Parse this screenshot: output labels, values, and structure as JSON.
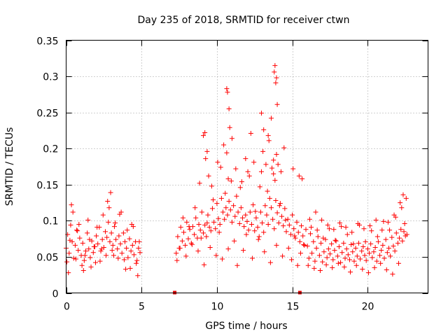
{
  "chart_data": {
    "type": "scatter",
    "title": "Day 235 of 2018, SRMTID for receiver ctwn",
    "xlabel": "GPS time / hours",
    "ylabel": "SRMTID / TECUs",
    "xlim": [
      0,
      24
    ],
    "ylim": [
      0,
      0.35
    ],
    "xticks": [
      0,
      5,
      10,
      15,
      20
    ],
    "xtick_labels": [
      "0",
      "5",
      "10",
      "15",
      "20"
    ],
    "yticks": [
      0,
      0.05,
      0.1,
      0.15,
      0.2,
      0.25,
      0.3,
      0.35
    ],
    "ytick_labels": [
      "0",
      "0.05",
      "0.1",
      "0.15",
      "0.2",
      "0.25",
      "0.3",
      "0.35"
    ],
    "grid": true,
    "marker": "plus",
    "color": "#ff0000",
    "data_gaps_marked_at_zero": [
      7.2,
      15.5
    ],
    "series": [
      {
        "name": "SRMTID",
        "x": [
          0.0,
          0.1,
          0.2,
          0.3,
          0.4,
          0.5,
          0.6,
          0.7,
          0.8,
          0.9,
          1.0,
          1.1,
          1.2,
          1.3,
          1.4,
          1.5,
          1.6,
          1.7,
          1.8,
          1.9,
          2.0,
          2.1,
          2.2,
          2.3,
          2.4,
          2.5,
          2.6,
          2.7,
          2.8,
          2.9,
          3.0,
          3.1,
          3.2,
          3.3,
          3.4,
          3.5,
          3.6,
          3.7,
          3.8,
          3.9,
          4.0,
          4.1,
          4.2,
          4.3,
          4.4,
          4.5,
          4.6,
          4.7,
          4.8,
          4.9,
          0.05,
          0.25,
          0.45,
          0.65,
          0.85,
          1.05,
          1.25,
          1.45,
          1.65,
          1.85,
          2.05,
          2.25,
          2.45,
          2.65,
          2.85,
          3.05,
          3.25,
          3.45,
          3.65,
          3.85,
          4.05,
          4.25,
          4.45,
          4.65,
          4.85,
          0.15,
          0.35,
          0.75,
          1.15,
          1.55,
          1.95,
          2.35,
          2.75,
          2.95,
          3.15,
          3.55,
          3.95,
          4.35,
          4.75,
          7.3,
          7.4,
          7.5,
          7.6,
          7.7,
          7.8,
          7.9,
          8.0,
          8.1,
          8.2,
          8.3,
          8.4,
          8.5,
          8.6,
          8.7,
          8.8,
          8.9,
          9.0,
          9.1,
          9.2,
          9.3,
          9.4,
          9.5,
          9.6,
          9.7,
          9.8,
          9.9,
          10.0,
          10.1,
          10.2,
          10.3,
          10.4,
          10.5,
          10.6,
          10.7,
          10.8,
          10.9,
          11.0,
          11.1,
          11.2,
          11.3,
          11.4,
          11.5,
          11.6,
          11.7,
          11.8,
          11.9,
          12.0,
          12.1,
          12.2,
          12.3,
          12.4,
          12.5,
          12.6,
          12.7,
          12.8,
          12.9,
          13.0,
          13.1,
          13.2,
          13.3,
          13.4,
          13.5,
          13.6,
          13.7,
          13.8,
          13.9,
          14.0,
          14.1,
          14.2,
          14.3,
          14.4,
          14.5,
          14.6,
          14.7,
          14.8,
          14.9,
          15.0,
          15.1,
          15.2,
          15.3,
          15.4,
          15.5,
          15.6,
          15.7,
          15.8,
          15.9,
          7.35,
          7.55,
          7.75,
          7.95,
          8.15,
          8.35,
          8.55,
          8.75,
          8.95,
          9.15,
          9.35,
          9.55,
          9.75,
          9.95,
          10.15,
          10.35,
          10.55,
          10.75,
          10.95,
          11.15,
          11.35,
          11.55,
          11.75,
          11.95,
          12.15,
          12.35,
          12.55,
          12.75,
          12.95,
          13.15,
          13.35,
          13.55,
          13.75,
          13.95,
          14.15,
          14.35,
          14.55,
          14.75,
          14.95,
          15.15,
          15.35,
          15.55,
          15.75,
          8.85,
          9.25,
          9.45,
          9.65,
          10.05,
          10.25,
          10.45,
          10.65,
          10.75,
          11.25,
          11.65,
          12.05,
          12.45,
          12.85,
          13.05,
          13.25,
          13.45,
          13.65,
          13.75,
          13.85,
          13.95,
          14.05,
          14.25,
          14.45,
          15.05,
          15.45,
          15.65,
          10.65,
          10.7,
          10.8,
          13.8,
          13.85,
          13.9,
          13.95,
          14.0,
          12.95,
          13.1,
          13.4,
          13.6,
          9.1,
          9.2,
          9.35,
          10.85,
          11.0,
          11.9,
          12.25,
          16.0,
          16.1,
          16.2,
          16.3,
          16.4,
          16.5,
          16.6,
          16.7,
          16.8,
          16.9,
          17.0,
          17.1,
          17.2,
          17.3,
          17.4,
          17.5,
          17.6,
          17.7,
          17.8,
          17.9,
          18.0,
          18.1,
          18.2,
          18.3,
          18.4,
          18.5,
          18.6,
          18.7,
          18.8,
          18.9,
          19.0,
          19.1,
          19.2,
          19.3,
          19.4,
          19.5,
          19.6,
          19.7,
          19.8,
          19.9,
          20.0,
          20.1,
          20.2,
          20.3,
          20.4,
          20.5,
          20.6,
          20.7,
          20.8,
          20.9,
          21.0,
          21.1,
          21.2,
          21.3,
          21.4,
          21.5,
          21.6,
          21.7,
          21.8,
          21.9,
          22.0,
          22.1,
          22.2,
          22.3,
          22.4,
          22.5,
          22.6,
          16.05,
          16.25,
          16.45,
          16.65,
          16.85,
          17.05,
          17.25,
          17.45,
          17.65,
          17.85,
          18.05,
          18.25,
          18.45,
          18.65,
          18.85,
          19.05,
          19.25,
          19.45,
          19.65,
          19.85,
          20.05,
          20.25,
          20.45,
          20.65,
          20.85,
          21.05,
          21.25,
          21.45,
          21.65,
          21.85,
          22.05,
          22.25,
          22.45,
          16.15,
          16.55,
          16.95,
          17.35,
          17.75,
          18.15,
          18.55,
          18.95,
          19.35,
          19.75,
          20.15,
          20.55,
          20.95,
          21.35,
          21.75,
          22.15,
          22.35,
          22.55
        ],
        "y": [
          0.062,
          0.081,
          0.055,
          0.094,
          0.071,
          0.048,
          0.066,
          0.087,
          0.059,
          0.076,
          0.052,
          0.069,
          0.045,
          0.058,
          0.083,
          0.061,
          0.049,
          0.072,
          0.056,
          0.064,
          0.079,
          0.068,
          0.091,
          0.058,
          0.074,
          0.063,
          0.085,
          0.077,
          0.098,
          0.071,
          0.083,
          0.066,
          0.092,
          0.074,
          0.061,
          0.079,
          0.068,
          0.055,
          0.083,
          0.071,
          0.062,
          0.049,
          0.075,
          0.058,
          0.066,
          0.053,
          0.071,
          0.045,
          0.062,
          0.056,
          0.043,
          0.073,
          0.112,
          0.047,
          0.095,
          0.038,
          0.052,
          0.101,
          0.036,
          0.064,
          0.091,
          0.044,
          0.108,
          0.052,
          0.118,
          0.059,
          0.097,
          0.048,
          0.112,
          0.046,
          0.087,
          0.034,
          0.092,
          0.041,
          0.071,
          0.028,
          0.122,
          0.086,
          0.031,
          0.074,
          0.042,
          0.061,
          0.127,
          0.139,
          0.052,
          0.109,
          0.033,
          0.095,
          0.024,
          0.055,
          0.078,
          0.062,
          0.091,
          0.072,
          0.084,
          0.066,
          0.098,
          0.075,
          0.088,
          0.069,
          0.092,
          0.081,
          0.104,
          0.076,
          0.095,
          0.087,
          0.112,
          0.083,
          0.094,
          0.078,
          0.108,
          0.091,
          0.086,
          0.117,
          0.098,
          0.089,
          0.124,
          0.103,
          0.095,
          0.131,
          0.112,
          0.102,
          0.118,
          0.108,
          0.127,
          0.115,
          0.098,
          0.121,
          0.106,
          0.134,
          0.112,
          0.096,
          0.118,
          0.104,
          0.092,
          0.108,
          0.099,
          0.087,
          0.112,
          0.095,
          0.122,
          0.086,
          0.104,
          0.091,
          0.078,
          0.112,
          0.097,
          0.084,
          0.121,
          0.108,
          0.095,
          0.131,
          0.118,
          0.102,
          0.089,
          0.128,
          0.111,
          0.097,
          0.124,
          0.106,
          0.093,
          0.117,
          0.085,
          0.102,
          0.094,
          0.081,
          0.108,
          0.089,
          0.076,
          0.098,
          0.084,
          0.071,
          0.093,
          0.079,
          0.066,
          0.088,
          0.045,
          0.062,
          0.104,
          0.051,
          0.092,
          0.067,
          0.118,
          0.058,
          0.076,
          0.039,
          0.097,
          0.063,
          0.129,
          0.052,
          0.084,
          0.047,
          0.138,
          0.061,
          0.155,
          0.072,
          0.038,
          0.146,
          0.059,
          0.081,
          0.162,
          0.048,
          0.113,
          0.074,
          0.168,
          0.057,
          0.141,
          0.042,
          0.184,
          0.066,
          0.121,
          0.051,
          0.101,
          0.062,
          0.046,
          0.079,
          0.038,
          0.055,
          0.067,
          0.152,
          0.186,
          0.162,
          0.148,
          0.181,
          0.174,
          0.205,
          0.194,
          0.158,
          0.172,
          0.154,
          0.168,
          0.181,
          0.147,
          0.196,
          0.178,
          0.211,
          0.173,
          0.165,
          0.156,
          0.192,
          0.178,
          0.168,
          0.201,
          0.172,
          0.162,
          0.158,
          0.283,
          0.278,
          0.255,
          0.306,
          0.315,
          0.291,
          0.298,
          0.261,
          0.249,
          0.226,
          0.218,
          0.242,
          0.218,
          0.222,
          0.196,
          0.229,
          0.214,
          0.186,
          0.221,
          0.065,
          0.048,
          0.082,
          0.055,
          0.071,
          0.044,
          0.062,
          0.078,
          0.052,
          0.069,
          0.043,
          0.057,
          0.074,
          0.049,
          0.061,
          0.054,
          0.068,
          0.046,
          0.059,
          0.072,
          0.051,
          0.064,
          0.042,
          0.056,
          0.069,
          0.048,
          0.061,
          0.053,
          0.046,
          0.067,
          0.057,
          0.044,
          0.062,
          0.051,
          0.069,
          0.047,
          0.058,
          0.064,
          0.052,
          0.045,
          0.061,
          0.055,
          0.068,
          0.049,
          0.057,
          0.063,
          0.044,
          0.071,
          0.052,
          0.059,
          0.066,
          0.048,
          0.074,
          0.056,
          0.062,
          0.051,
          0.077,
          0.065,
          0.058,
          0.083,
          0.069,
          0.076,
          0.088,
          0.072,
          0.085,
          0.079,
          0.081,
          0.038,
          0.091,
          0.034,
          0.087,
          0.031,
          0.076,
          0.039,
          0.089,
          0.035,
          0.073,
          0.041,
          0.092,
          0.036,
          0.081,
          0.029,
          0.068,
          0.038,
          0.094,
          0.033,
          0.071,
          0.028,
          0.086,
          0.035,
          0.078,
          0.041,
          0.099,
          0.032,
          0.087,
          0.026,
          0.105,
          0.041,
          0.118,
          0.096,
          0.102,
          0.112,
          0.101,
          0.094,
          0.088,
          0.097,
          0.091,
          0.084,
          0.096,
          0.089,
          0.093,
          0.101,
          0.087,
          0.098,
          0.108,
          0.125,
          0.136,
          0.131
        ]
      }
    ]
  }
}
